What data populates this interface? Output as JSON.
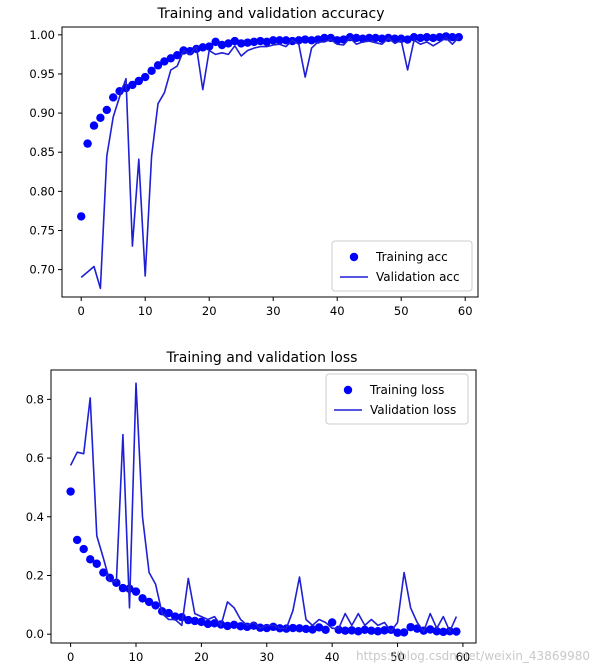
{
  "chart_data": [
    {
      "type": "line",
      "title": "Training and validation accuracy",
      "xlabel": "",
      "ylabel": "",
      "xlim": [
        -3,
        62
      ],
      "ylim": [
        0.665,
        1.01
      ],
      "xticks": [
        0,
        10,
        20,
        30,
        40,
        50,
        60
      ],
      "xtick_labels": [
        "0",
        "10",
        "20",
        "30",
        "40",
        "50",
        "60"
      ],
      "yticks": [
        0.7,
        0.75,
        0.8,
        0.85,
        0.9,
        0.95,
        1.0
      ],
      "ytick_labels": [
        "0.70",
        "0.75",
        "0.80",
        "0.85",
        "0.90",
        "0.95",
        "1.00"
      ],
      "grid": false,
      "legend_position": "lower-right",
      "series": [
        {
          "name": "Training acc",
          "style": "dots",
          "color": "#0000ff",
          "x": [
            0,
            1,
            2,
            3,
            4,
            5,
            6,
            7,
            8,
            9,
            10,
            11,
            12,
            13,
            14,
            15,
            16,
            17,
            18,
            19,
            20,
            21,
            22,
            23,
            24,
            25,
            26,
            27,
            28,
            29,
            30,
            31,
            32,
            33,
            34,
            35,
            36,
            37,
            38,
            39,
            40,
            41,
            42,
            43,
            44,
            45,
            46,
            47,
            48,
            49,
            50,
            51,
            52,
            53,
            54,
            55,
            56,
            57,
            58,
            59
          ],
          "y": [
            0.768,
            0.861,
            0.884,
            0.894,
            0.904,
            0.92,
            0.928,
            0.932,
            0.936,
            0.941,
            0.946,
            0.954,
            0.961,
            0.966,
            0.97,
            0.974,
            0.98,
            0.979,
            0.982,
            0.984,
            0.985,
            0.991,
            0.987,
            0.989,
            0.992,
            0.989,
            0.99,
            0.991,
            0.992,
            0.991,
            0.993,
            0.993,
            0.993,
            0.992,
            0.993,
            0.994,
            0.993,
            0.994,
            0.996,
            0.996,
            0.993,
            0.994,
            0.997,
            0.996,
            0.995,
            0.996,
            0.996,
            0.995,
            0.996,
            0.995,
            0.995,
            0.994,
            0.997,
            0.996,
            0.997,
            0.996,
            0.997,
            0.998,
            0.997,
            0.997
          ]
        },
        {
          "name": "Validation acc",
          "style": "line",
          "color": "#1f1fd6",
          "x": [
            0,
            1,
            2,
            3,
            4,
            5,
            6,
            7,
            8,
            9,
            10,
            11,
            12,
            13,
            14,
            15,
            16,
            17,
            18,
            19,
            20,
            21,
            22,
            23,
            24,
            25,
            26,
            27,
            28,
            29,
            30,
            31,
            32,
            33,
            34,
            35,
            36,
            37,
            38,
            39,
            40,
            41,
            42,
            43,
            44,
            45,
            46,
            47,
            48,
            49,
            50,
            51,
            52,
            53,
            54,
            55,
            56,
            57,
            58,
            59
          ],
          "y": [
            0.69,
            0.697,
            0.704,
            0.676,
            0.845,
            0.895,
            0.921,
            0.944,
            0.73,
            0.841,
            0.692,
            0.845,
            0.912,
            0.926,
            0.955,
            0.96,
            0.98,
            0.975,
            0.985,
            0.93,
            0.98,
            0.975,
            0.977,
            0.975,
            0.986,
            0.973,
            0.98,
            0.983,
            0.985,
            0.985,
            0.987,
            0.988,
            0.985,
            0.993,
            0.988,
            0.946,
            0.983,
            0.991,
            0.991,
            0.994,
            0.988,
            0.987,
            0.996,
            0.988,
            0.991,
            0.992,
            0.99,
            0.988,
            0.996,
            0.989,
            0.993,
            0.955,
            0.993,
            0.988,
            0.991,
            0.986,
            0.991,
            0.996,
            0.988,
            0.997
          ]
        }
      ]
    },
    {
      "type": "line",
      "title": "Training and validation loss",
      "xlabel": "",
      "ylabel": "",
      "xlim": [
        -3,
        62
      ],
      "ylim": [
        -0.03,
        0.9
      ],
      "xticks": [
        0,
        10,
        20,
        30,
        40,
        50,
        60
      ],
      "xtick_labels": [
        "0",
        "10",
        "20",
        "30",
        "40",
        "50",
        "60"
      ],
      "yticks": [
        0.0,
        0.2,
        0.4,
        0.6,
        0.8
      ],
      "ytick_labels": [
        "0.0",
        "0.2",
        "0.4",
        "0.6",
        "0.8"
      ],
      "grid": false,
      "legend_position": "upper-right",
      "series": [
        {
          "name": "Training loss",
          "style": "dots",
          "color": "#0000ff",
          "x": [
            0,
            1,
            2,
            3,
            4,
            5,
            6,
            7,
            8,
            9,
            10,
            11,
            12,
            13,
            14,
            15,
            16,
            17,
            18,
            19,
            20,
            21,
            22,
            23,
            24,
            25,
            26,
            27,
            28,
            29,
            30,
            31,
            32,
            33,
            34,
            35,
            36,
            37,
            38,
            39,
            40,
            41,
            42,
            43,
            44,
            45,
            46,
            47,
            48,
            49,
            50,
            51,
            52,
            53,
            54,
            55,
            56,
            57,
            58,
            59
          ],
          "y": [
            0.486,
            0.321,
            0.29,
            0.255,
            0.24,
            0.21,
            0.192,
            0.175,
            0.157,
            0.155,
            0.145,
            0.122,
            0.11,
            0.098,
            0.078,
            0.072,
            0.06,
            0.058,
            0.048,
            0.045,
            0.042,
            0.035,
            0.037,
            0.033,
            0.028,
            0.032,
            0.027,
            0.025,
            0.029,
            0.022,
            0.021,
            0.025,
            0.02,
            0.019,
            0.021,
            0.02,
            0.018,
            0.016,
            0.023,
            0.015,
            0.04,
            0.015,
            0.012,
            0.013,
            0.01,
            0.015,
            0.012,
            0.01,
            0.013,
            0.015,
            0.005,
            0.006,
            0.024,
            0.019,
            0.012,
            0.016,
            0.01,
            0.008,
            0.01,
            0.009
          ]
        },
        {
          "name": "Validation loss",
          "style": "line",
          "color": "#1f1fd6",
          "x": [
            0,
            1,
            2,
            3,
            4,
            5,
            6,
            7,
            8,
            9,
            10,
            11,
            12,
            13,
            14,
            15,
            16,
            17,
            18,
            19,
            20,
            21,
            22,
            23,
            24,
            25,
            26,
            27,
            28,
            29,
            30,
            31,
            32,
            33,
            34,
            35,
            36,
            37,
            38,
            39,
            40,
            41,
            42,
            43,
            44,
            45,
            46,
            47,
            48,
            49,
            50,
            51,
            52,
            53,
            54,
            55,
            56,
            57,
            58,
            59
          ],
          "y": [
            0.575,
            0.62,
            0.615,
            0.805,
            0.335,
            0.26,
            0.18,
            0.18,
            0.68,
            0.09,
            0.855,
            0.4,
            0.21,
            0.17,
            0.07,
            0.05,
            0.05,
            0.03,
            0.19,
            0.07,
            0.06,
            0.05,
            0.06,
            0.03,
            0.11,
            0.09,
            0.05,
            0.03,
            0.04,
            0.02,
            0.03,
            0.03,
            0.02,
            0.02,
            0.08,
            0.195,
            0.05,
            0.03,
            0.05,
            0.04,
            0.02,
            0.02,
            0.07,
            0.03,
            0.07,
            0.03,
            0.05,
            0.03,
            0.04,
            0.01,
            0.04,
            0.21,
            0.09,
            0.04,
            0.01,
            0.07,
            0.02,
            0.06,
            0.01,
            0.06
          ]
        }
      ]
    }
  ],
  "watermark": "https://blog.csdn.net/weixin_43869980"
}
